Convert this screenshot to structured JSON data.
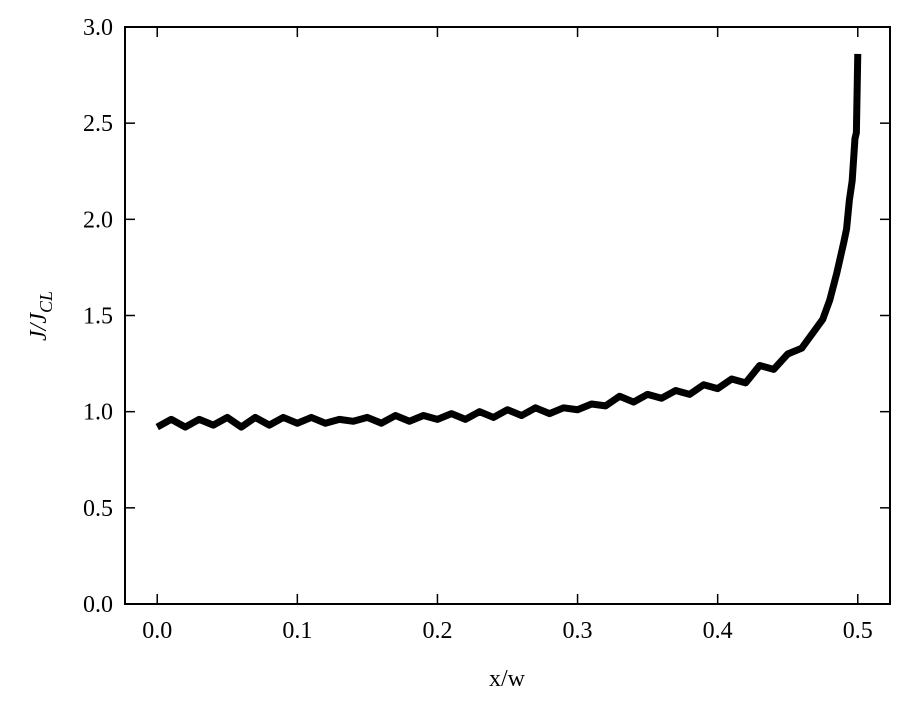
{
  "chart_data": {
    "type": "line",
    "xlabel": "x/w",
    "ylabel": {
      "main": "J/J",
      "sub": "CL"
    },
    "xlim": [
      -0.023,
      0.523
    ],
    "ylim": [
      0,
      3.0
    ],
    "xticks": [
      {
        "value": 0,
        "label": "0.0"
      },
      0.1,
      0.2,
      0.3,
      0.4,
      0.5
    ],
    "yticks": [
      {
        "value": 0,
        "label": "0.0"
      },
      0.5,
      {
        "value": 1,
        "label": "1.0"
      },
      1.5,
      {
        "value": 2,
        "label": "2.0"
      },
      2.5,
      {
        "value": 3,
        "label": "3.0"
      }
    ],
    "x": [
      0,
      0.01,
      0.02,
      0.03,
      0.04,
      0.05,
      0.06,
      0.07,
      0.08,
      0.09,
      0.1,
      0.11,
      0.12,
      0.13,
      0.14,
      0.15,
      0.16,
      0.17,
      0.18,
      0.19,
      0.2,
      0.21,
      0.22,
      0.23,
      0.24,
      0.25,
      0.26,
      0.27,
      0.28,
      0.29,
      0.3,
      0.31,
      0.32,
      0.33,
      0.34,
      0.35,
      0.36,
      0.37,
      0.38,
      0.39,
      0.4,
      0.41,
      0.42,
      0.43,
      0.44,
      0.45,
      0.46,
      0.47,
      0.475,
      0.48,
      0.485,
      0.49,
      0.492,
      0.494,
      0.496,
      0.498,
      0.499,
      0.5
    ],
    "series": [
      {
        "color": "#000000",
        "values": [
          0.92,
          0.96,
          0.92,
          0.96,
          0.93,
          0.97,
          0.92,
          0.97,
          0.93,
          0.97,
          0.94,
          0.97,
          0.94,
          0.96,
          0.95,
          0.97,
          0.94,
          0.98,
          0.95,
          0.98,
          0.96,
          0.99,
          0.96,
          1.0,
          0.97,
          1.01,
          0.98,
          1.02,
          0.99,
          1.02,
          1.01,
          1.04,
          1.03,
          1.08,
          1.05,
          1.09,
          1.07,
          1.11,
          1.09,
          1.14,
          1.12,
          1.17,
          1.15,
          1.24,
          1.22,
          1.3,
          1.33,
          1.43,
          1.48,
          1.58,
          1.72,
          1.88,
          1.95,
          2.1,
          2.2,
          2.42,
          2.45,
          2.86
        ]
      }
    ]
  }
}
